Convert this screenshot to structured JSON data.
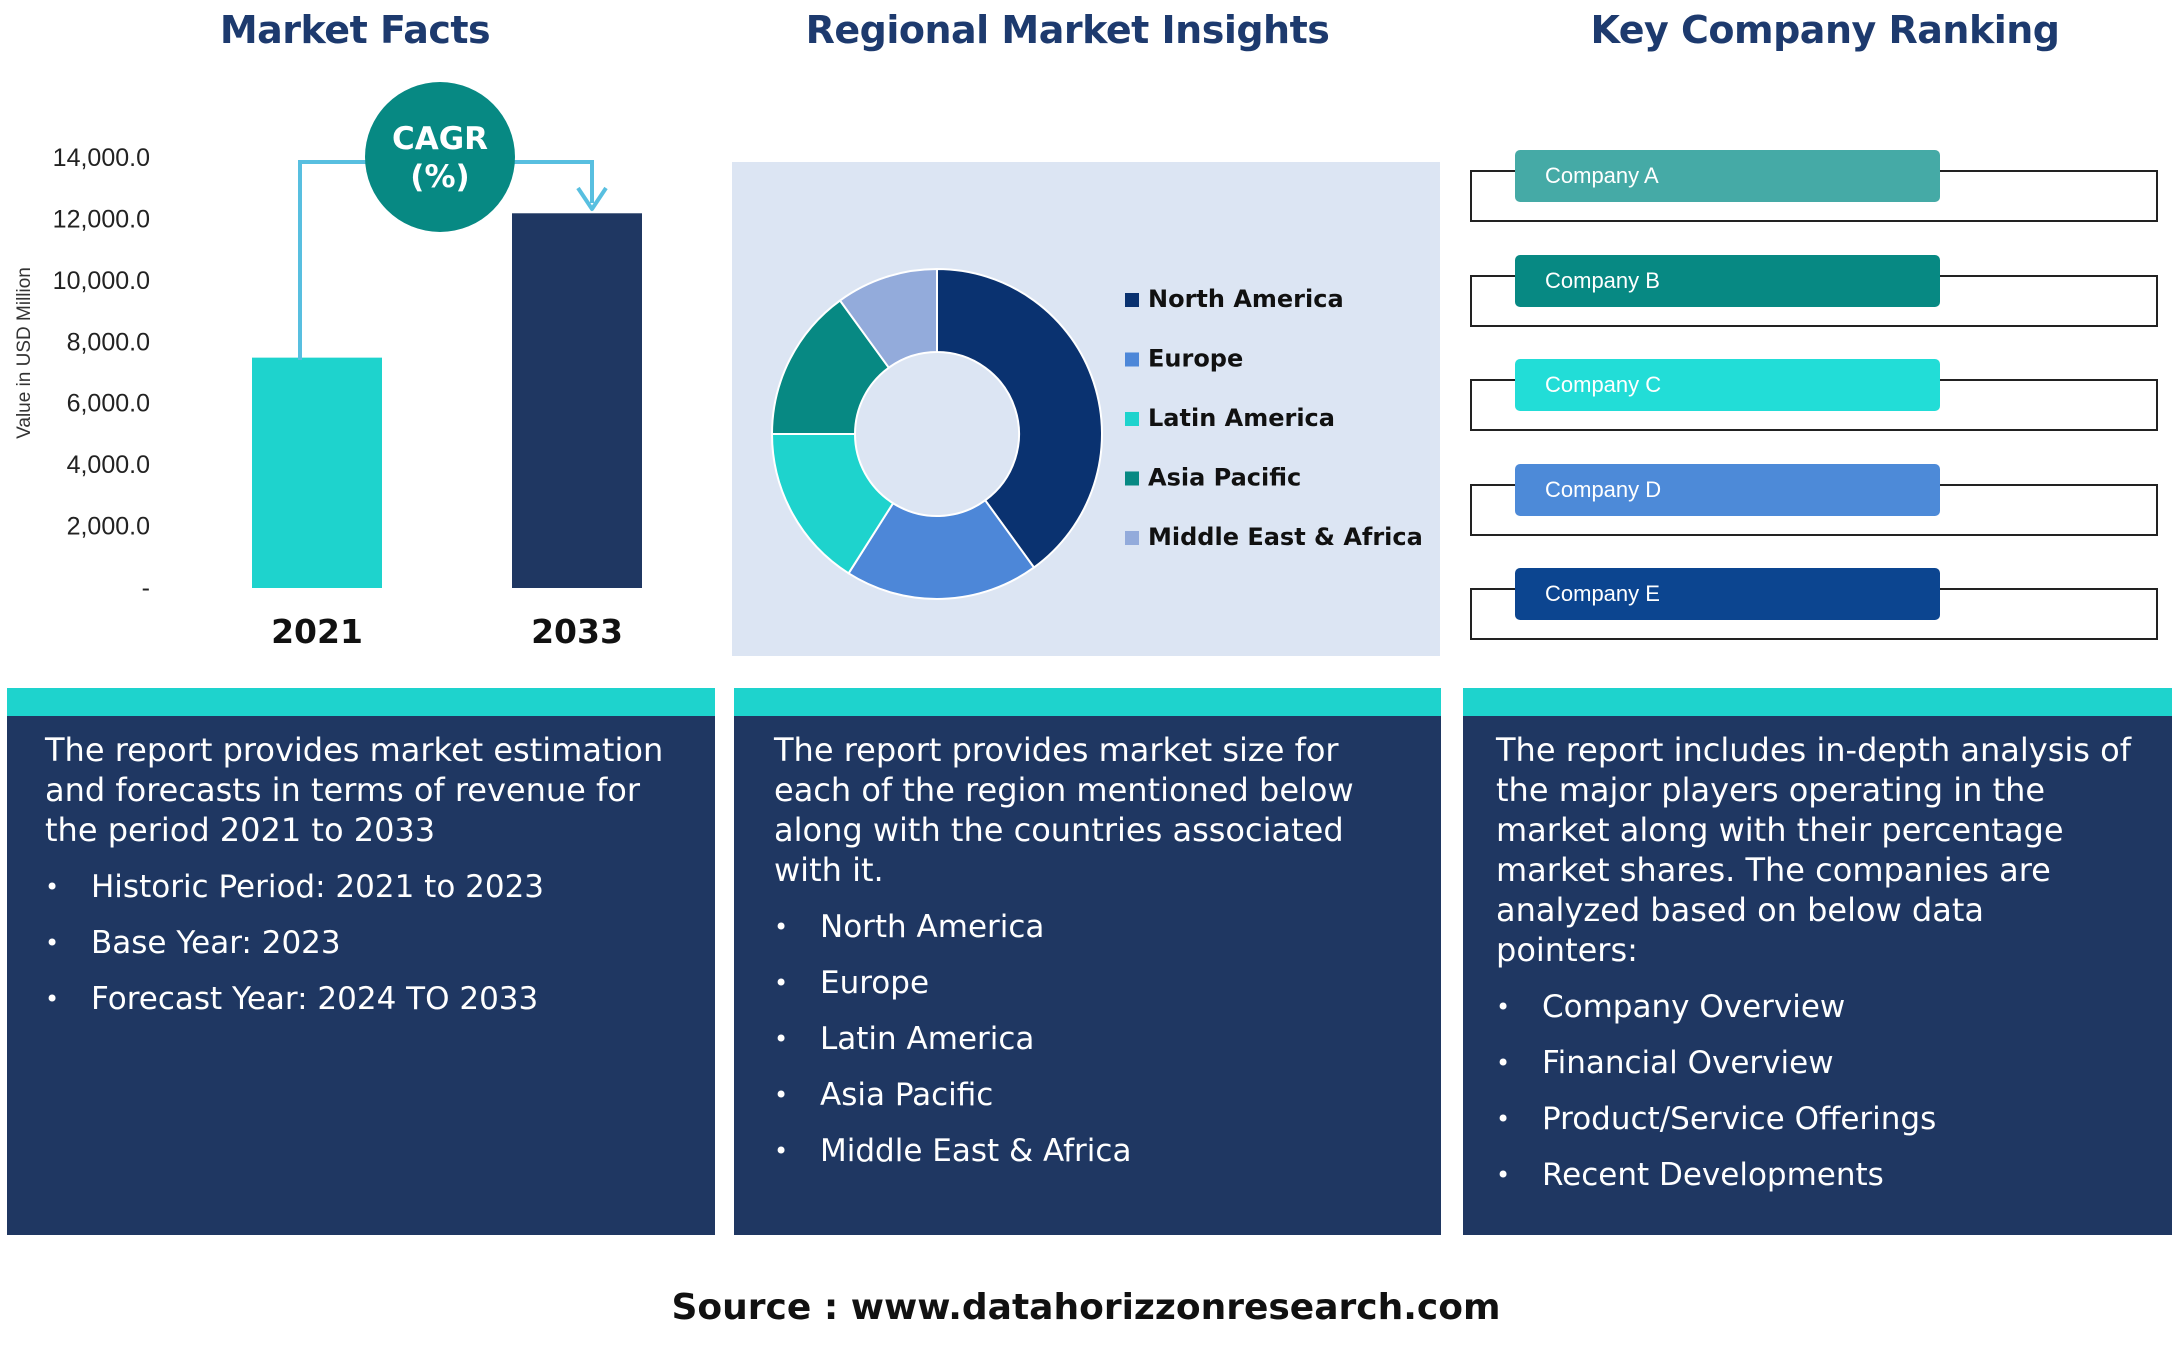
{
  "sections": {
    "market_facts": {
      "title": "Market Facts"
    },
    "regional": {
      "title": "Regional Market Insights"
    },
    "ranking": {
      "title": "Key Company Ranking"
    }
  },
  "cagr_badge": {
    "line1": "CAGR",
    "line2": "(%)",
    "color": "#078983"
  },
  "chart_data": [
    {
      "type": "bar",
      "categories": [
        "2021",
        "2033"
      ],
      "values": [
        7500,
        12200
      ],
      "colors": [
        "#1ed3cd",
        "#1f3762"
      ],
      "ylabel": "Value in USD Million",
      "ylim": [
        0,
        14000
      ],
      "yticks": [
        "-",
        "2,000.0",
        "4,000.0",
        "6,000.0",
        "8,000.0",
        "10,000.0",
        "12,000.0",
        "14,000.0"
      ],
      "grid": false
    },
    {
      "type": "pie",
      "donut": true,
      "legend_position": "right",
      "labels": [
        "North America",
        "Europe",
        "Latin America",
        "Asia Pacific",
        "Middle East & Africa"
      ],
      "values": [
        40,
        19,
        16,
        15,
        10
      ],
      "colors": [
        "#0a3270",
        "#4d87d8",
        "#1ed3cd",
        "#078983",
        "#93abdb"
      ]
    }
  ],
  "companies": [
    {
      "label": "Company A",
      "color": "#45aaa6"
    },
    {
      "label": "Company B",
      "color": "#078983"
    },
    {
      "label": "Company C",
      "color": "#22ddd7"
    },
    {
      "label": "Company D",
      "color": "#4d8ad8"
    },
    {
      "label": "Company E",
      "color": "#0c4590"
    }
  ],
  "panels": {
    "market_facts": {
      "intro": "The report provides market estimation and forecasts in terms of revenue for the period 2021 to 2033",
      "bullets": [
        "Historic Period: 2021 to 2023",
        "Base Year: 2023",
        "Forecast Year: 2024 TO 2033"
      ]
    },
    "regional": {
      "intro": "The report provides market size for each of the region mentioned below along with the countries associated with it.",
      "bullets": [
        "North America",
        "Europe",
        "Latin America",
        "Asia Pacific",
        "Middle East & Africa"
      ]
    },
    "ranking": {
      "intro": "The report includes in-depth analysis of the major players operating in the market along with their percentage market shares. The companies are analyzed based on below data pointers:",
      "bullets": [
        "Company Overview",
        "Financial Overview",
        "Product/Service Offerings",
        "Recent Developments"
      ]
    }
  },
  "bullet_symbol": "•",
  "source": "Source : www.datahorizzonresearch.com"
}
